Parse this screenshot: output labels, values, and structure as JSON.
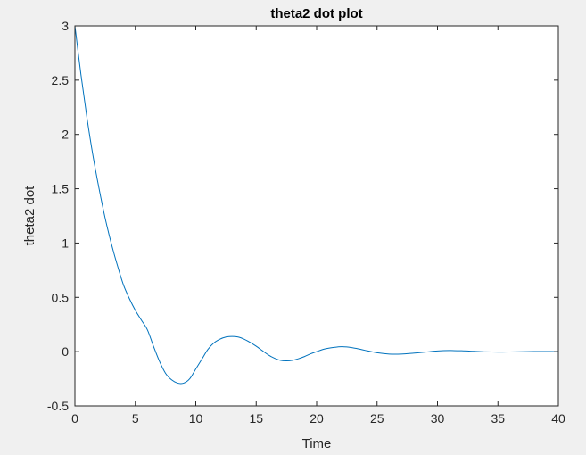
{
  "chart_data": {
    "type": "line",
    "title": "theta2 dot plot",
    "xlabel": "Time",
    "ylabel": "theta2 dot",
    "xlim": [
      0,
      40
    ],
    "ylim": [
      -0.5,
      3
    ],
    "xticks": [
      "0",
      "5",
      "10",
      "15",
      "20",
      "25",
      "30",
      "35",
      "40"
    ],
    "yticks": [
      "-0.5",
      "0",
      "0.5",
      "1",
      "1.5",
      "2",
      "2.5",
      "3"
    ],
    "grid": false,
    "series": [
      {
        "color": "#0072bd",
        "x": [
          0,
          0.5,
          1,
          1.5,
          2,
          2.5,
          3,
          3.5,
          4,
          4.5,
          5,
          5.5,
          6,
          6.5,
          7,
          7.5,
          8,
          8.5,
          9,
          9.5,
          10,
          10.5,
          11,
          11.5,
          12,
          12.5,
          13,
          13.5,
          14,
          14.5,
          15,
          15.5,
          16,
          16.5,
          17,
          17.5,
          18,
          18.5,
          19,
          19.5,
          20,
          20.5,
          21,
          21.5,
          22,
          22.5,
          23,
          23.5,
          24,
          25,
          26,
          27,
          28,
          29,
          30,
          31,
          32,
          33,
          34,
          35,
          36,
          37,
          38,
          39,
          40
        ],
        "y": [
          3.0,
          2.55,
          2.15,
          1.8,
          1.5,
          1.23,
          1.0,
          0.8,
          0.62,
          0.49,
          0.38,
          0.29,
          0.2,
          0.05,
          -0.09,
          -0.2,
          -0.26,
          -0.29,
          -0.29,
          -0.25,
          -0.16,
          -0.07,
          0.02,
          0.08,
          0.115,
          0.135,
          0.14,
          0.135,
          0.115,
          0.085,
          0.05,
          0.01,
          -0.03,
          -0.06,
          -0.08,
          -0.085,
          -0.08,
          -0.065,
          -0.045,
          -0.02,
          0.0,
          0.02,
          0.032,
          0.04,
          0.045,
          0.043,
          0.035,
          0.025,
          0.012,
          -0.01,
          -0.022,
          -0.022,
          -0.014,
          -0.004,
          0.006,
          0.01,
          0.008,
          0.003,
          -0.002,
          -0.004,
          -0.003,
          -0.001,
          0.001,
          0.001,
          0.0
        ]
      }
    ]
  }
}
